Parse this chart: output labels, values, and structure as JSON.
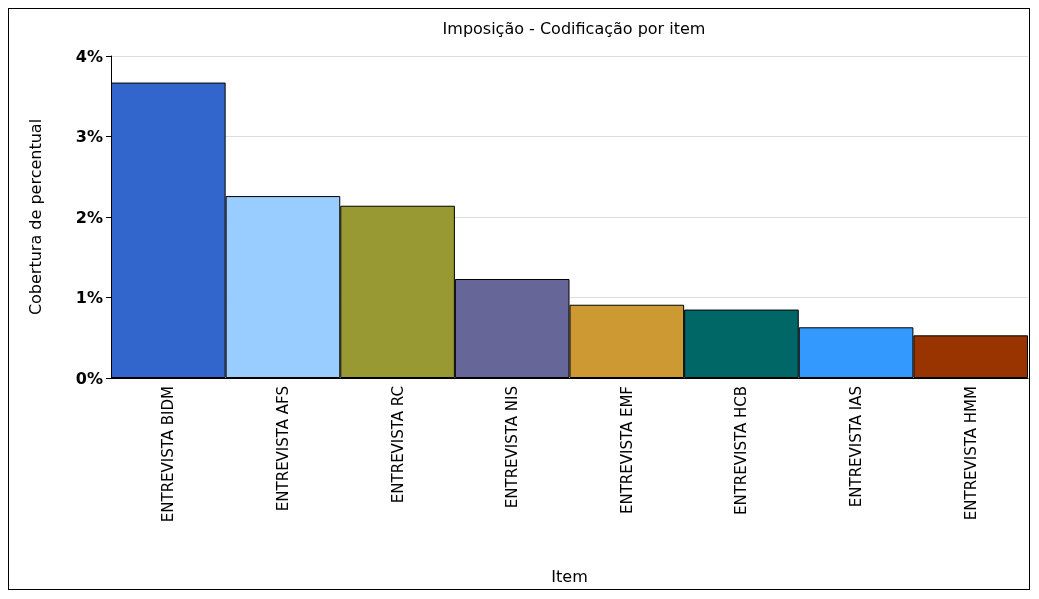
{
  "chart_data": {
    "type": "bar",
    "title": "Imposição - Codificação por item",
    "xlabel": "Item",
    "ylabel": "Cobertura de percentual",
    "categories": [
      "ENTREVISTA BIDM",
      "ENTREVISTA AFS",
      "ENTREVISTA RC",
      "ENTREVISTA NIS",
      "ENTREVISTA EMF",
      "ENTREVISTA HCB",
      "ENTREVISTA IAS",
      "ENTREVISTA HMM"
    ],
    "values": [
      3.67,
      2.26,
      2.14,
      1.23,
      0.91,
      0.85,
      0.63,
      0.53
    ],
    "colors": [
      "#3366cc",
      "#99ccff",
      "#999933",
      "#666699",
      "#cc9933",
      "#006666",
      "#3399ff",
      "#993300"
    ],
    "ylim": [
      0,
      4
    ],
    "yticks": [
      {
        "value": 0,
        "label": "0%"
      },
      {
        "value": 1,
        "label": "1%"
      },
      {
        "value": 2,
        "label": "2%"
      },
      {
        "value": 3,
        "label": "3%"
      },
      {
        "value": 4,
        "label": "4%"
      }
    ],
    "grid": "y"
  }
}
